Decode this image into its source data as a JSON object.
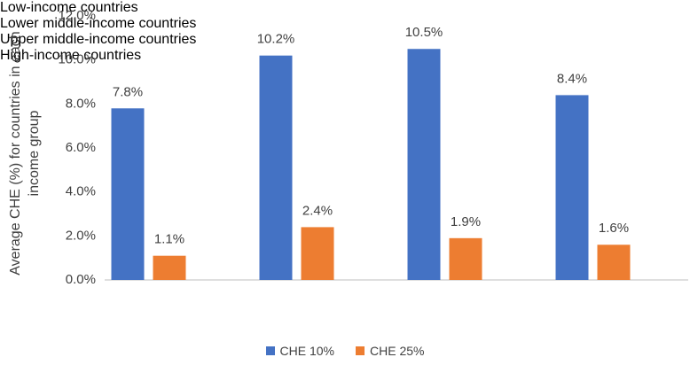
{
  "chart_data": {
    "type": "bar",
    "y_label": "Average CHE (%) for countries in each income group",
    "categories": [
      "Low-income countries",
      "Lower middle-income countries",
      "Upper middle-income countries",
      "High-income countries"
    ],
    "series": [
      {
        "name": "CHE 10%",
        "color": "#4472c4",
        "values": [
          7.8,
          10.2,
          10.5,
          8.4
        ],
        "value_labels": [
          "7.8%",
          "10.2%",
          "10.5%",
          "8.4%"
        ]
      },
      {
        "name": "CHE 25%",
        "color": "#ed7d31",
        "values": [
          1.1,
          2.4,
          1.9,
          1.6
        ],
        "value_labels": [
          "1.1%",
          "2.4%",
          "1.9%",
          "1.6%"
        ]
      }
    ],
    "ylim": [
      0,
      12
    ],
    "yticks": [
      {
        "value": 0,
        "label": "0.0%"
      },
      {
        "value": 2,
        "label": "2.0%"
      },
      {
        "value": 4,
        "label": "4.0%"
      },
      {
        "value": 6,
        "label": "6.0%"
      },
      {
        "value": 8,
        "label": "8.0%"
      },
      {
        "value": 10,
        "label": "10.0%"
      },
      {
        "value": 12,
        "label": "12.0%"
      }
    ],
    "grid": false,
    "legend": "bottom"
  }
}
